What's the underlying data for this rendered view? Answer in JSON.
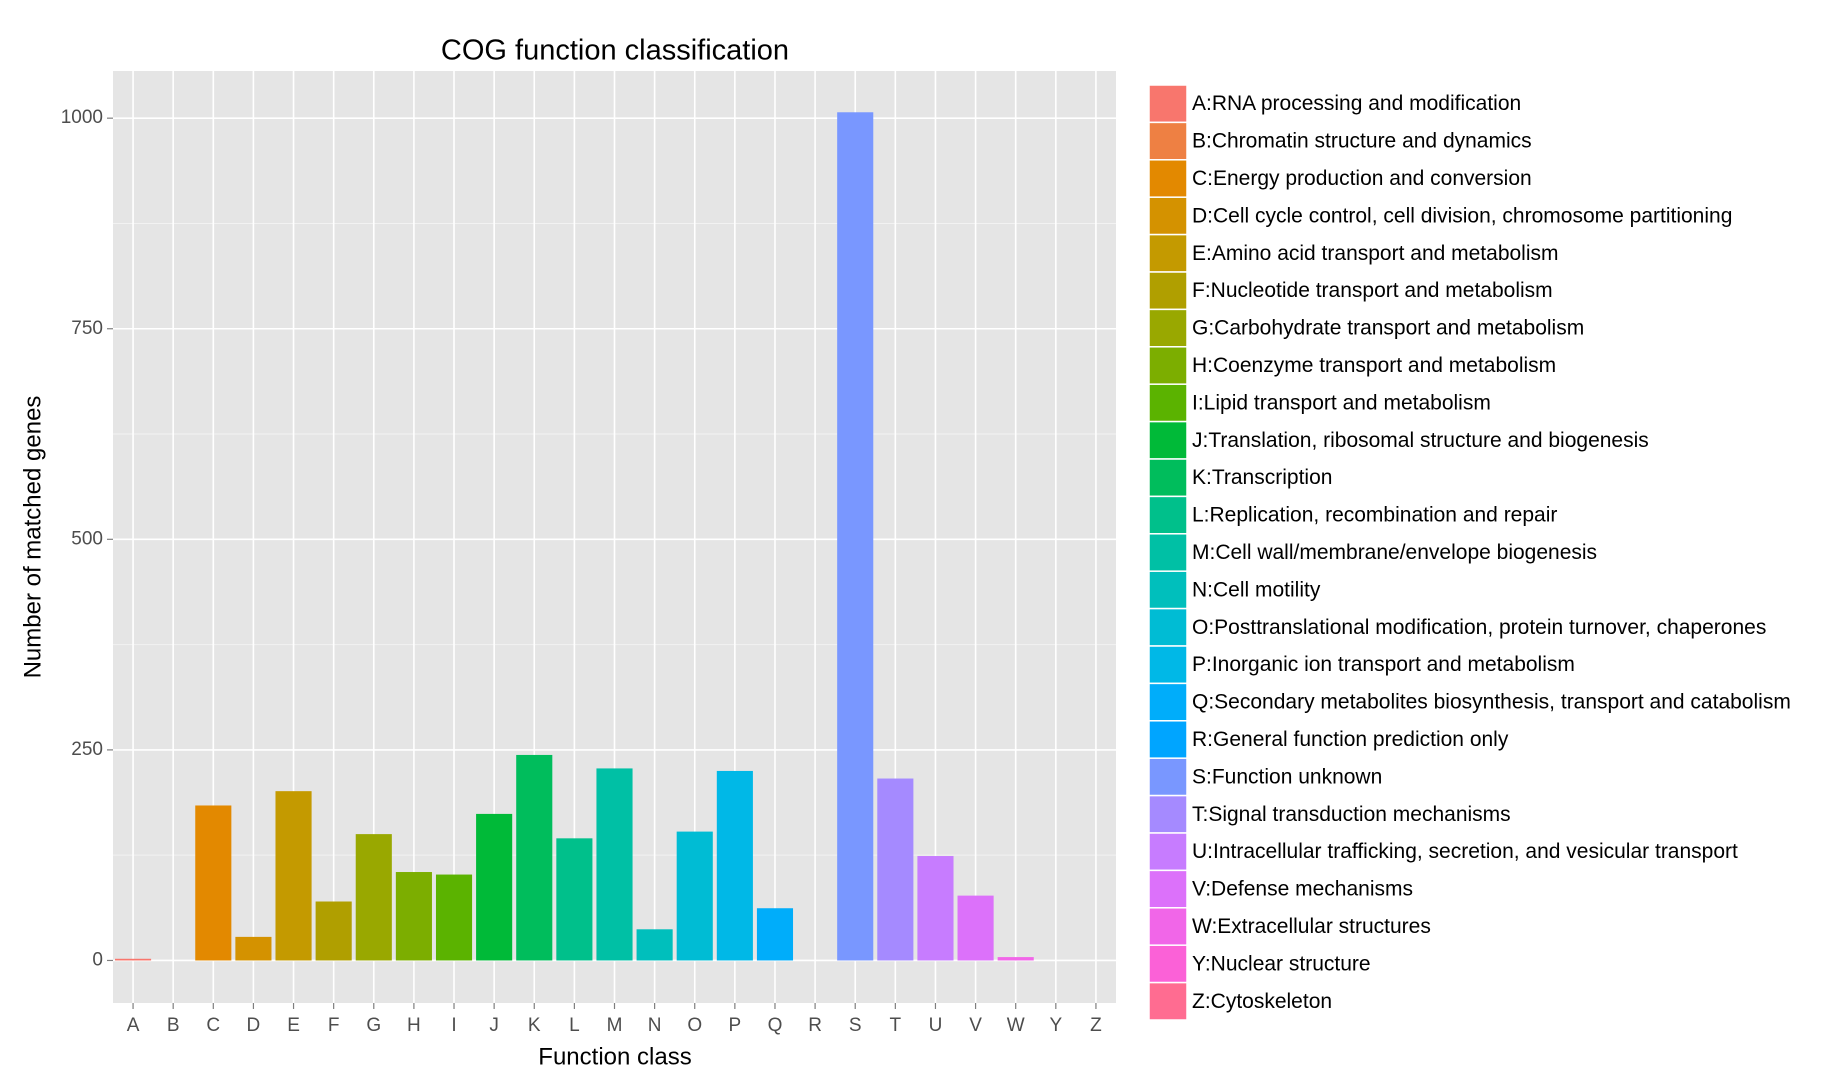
{
  "chart_data": {
    "type": "bar",
    "title": "COG function classification",
    "x_label": "Function class",
    "y_label": "Number of matched genes",
    "categories": [
      "A",
      "B",
      "C",
      "D",
      "E",
      "F",
      "G",
      "H",
      "I",
      "J",
      "K",
      "L",
      "M",
      "N",
      "O",
      "P",
      "Q",
      "R",
      "S",
      "T",
      "U",
      "V",
      "W",
      "Y",
      "Z"
    ],
    "values": [
      2,
      0,
      184,
      28,
      201,
      70,
      150,
      105,
      102,
      174,
      244,
      145,
      228,
      37,
      153,
      225,
      62,
      0,
      1007,
      216,
      124,
      77,
      4,
      0,
      0
    ],
    "colors": [
      "#F8766D",
      "#EE8043",
      "#E38900",
      "#D49200",
      "#C49A00",
      "#B09F00",
      "#99A800",
      "#7CAE00",
      "#5BB300",
      "#00BA38",
      "#00BD5C",
      "#00C08B",
      "#00C0A5",
      "#00BFBC",
      "#00BCD4",
      "#00B8E7",
      "#00ADFA",
      "#00A5FF",
      "#7997FF",
      "#A58AFF",
      "#C77CFF",
      "#DC71FA",
      "#F166E8",
      "#FB61D7",
      "#FF6C91"
    ],
    "legend": [
      "A:RNA processing and modification",
      "B:Chromatin structure and dynamics",
      "C:Energy production and conversion",
      "D:Cell cycle control, cell division, chromosome partitioning",
      "E:Amino acid transport and metabolism",
      "F:Nucleotide transport and metabolism",
      "G:Carbohydrate transport and metabolism",
      "H:Coenzyme transport and metabolism",
      "I:Lipid transport and metabolism",
      "J:Translation, ribosomal structure and biogenesis",
      "K:Transcription",
      "L:Replication, recombination and repair",
      "M:Cell wall/membrane/envelope biogenesis",
      "N:Cell motility",
      "O:Posttranslational modification, protein turnover, chaperones",
      "P:Inorganic ion transport and metabolism",
      "Q:Secondary metabolites biosynthesis, transport and catabolism",
      "R:General function prediction only",
      "S:Function unknown",
      "T:Signal transduction mechanisms",
      "U:Intracellular trafficking, secretion, and vesicular transport",
      "V:Defense mechanisms",
      "W:Extracellular structures",
      "Y:Nuclear structure",
      "Z:Cytoskeleton"
    ],
    "legend_position": "right",
    "ylim": [
      -50.5,
      1056
    ],
    "yticks": [
      0,
      250,
      500,
      750,
      1000
    ],
    "grid": true
  }
}
